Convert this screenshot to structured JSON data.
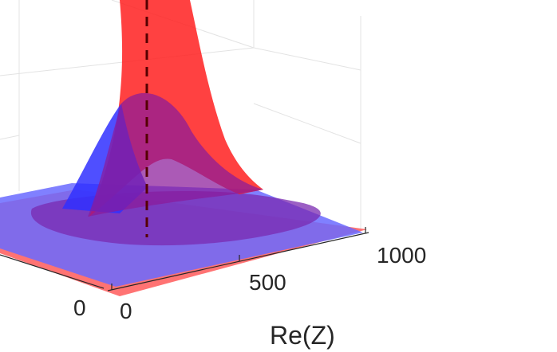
{
  "chart_data": {
    "type": "surface-3d",
    "xlabel": "Re(Z)",
    "x_ticks": [
      "0",
      "500",
      "1000"
    ],
    "y_ticks": [
      "0"
    ],
    "grid": true,
    "series": [
      {
        "color": "#ff0000",
        "opacity": 0.65
      },
      {
        "color": "#0000ff",
        "opacity": 0.55
      }
    ],
    "marker_line": {
      "style": "dashed",
      "color": "#550000"
    },
    "colors": {
      "background": "#ffffff",
      "grid": "#e3e3e3",
      "axis": "#262626",
      "red_surface": "#ff2a2a",
      "blue_surface": "#4a4aff",
      "overlap": "#8a2a9a"
    }
  }
}
